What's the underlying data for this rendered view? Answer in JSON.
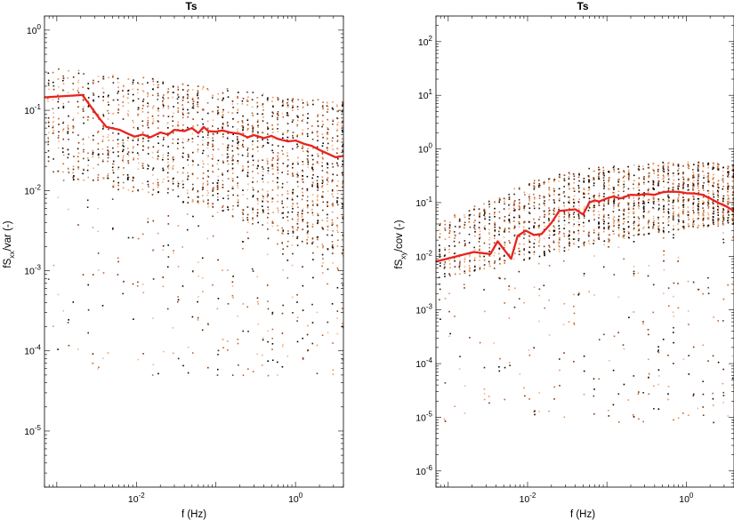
{
  "chart_data": [
    {
      "type": "scatter",
      "title": "Ts",
      "xlabel": "f (Hz)",
      "ylabel": "fSₓₓ/var (-)",
      "ylabel_main": "fS",
      "ylabel_sub": "xx",
      "ylabel_tail": "/var (-)",
      "x_scale": "log",
      "y_scale": "log",
      "xlim": [
        0.0007,
        4.0
      ],
      "ylim": [
        2e-06,
        1.5
      ],
      "x_ticks": [
        {
          "value": 0.01,
          "base": "10",
          "exp": "-2"
        },
        {
          "value": 1,
          "base": "10",
          "exp": "0"
        }
      ],
      "y_ticks": [
        {
          "value": 1,
          "base": "10",
          "exp": "0"
        },
        {
          "value": 0.1,
          "base": "10",
          "exp": "-1"
        },
        {
          "value": 0.01,
          "base": "10",
          "exp": "-2"
        },
        {
          "value": 0.001,
          "base": "10",
          "exp": "-3"
        },
        {
          "value": 0.0001,
          "base": "10",
          "exp": "-4"
        },
        {
          "value": 1e-05,
          "base": "10",
          "exp": "-5"
        }
      ],
      "scatter_cloud": {
        "colors": [
          "#000000",
          "#3a1a08",
          "#7a3410",
          "#c0622a",
          "#e9925a",
          "#f2b58a"
        ],
        "band_low": [
          0.018,
          0.013,
          0.011,
          0.0095,
          0.008,
          0.0065,
          0.005,
          0.0038,
          0.0028,
          0.002,
          0.0015
        ],
        "band_high": [
          0.35,
          0.33,
          0.3,
          0.27,
          0.24,
          0.21,
          0.19,
          0.17,
          0.15,
          0.14,
          0.13
        ],
        "outlier_low": 5e-05
      },
      "series": [
        {
          "color": "#e8231e",
          "x": [
            0.0007,
            0.0021,
            0.0034,
            0.0042,
            0.0062,
            0.0075,
            0.0095,
            0.012,
            0.015,
            0.02,
            0.025,
            0.03,
            0.04,
            0.05,
            0.06,
            0.07,
            0.08,
            0.1,
            0.12,
            0.15,
            0.2,
            0.25,
            0.3,
            0.4,
            0.5,
            0.6,
            0.8,
            1.0,
            1.3,
            1.6,
            2.0,
            2.5,
            3.2,
            4.0
          ],
          "y": [
            0.145,
            0.155,
            0.08,
            0.062,
            0.057,
            0.052,
            0.047,
            0.05,
            0.046,
            0.053,
            0.05,
            0.057,
            0.055,
            0.06,
            0.052,
            0.062,
            0.055,
            0.054,
            0.056,
            0.053,
            0.051,
            0.046,
            0.049,
            0.045,
            0.048,
            0.044,
            0.041,
            0.042,
            0.038,
            0.036,
            0.032,
            0.029,
            0.026,
            0.027
          ]
        }
      ]
    },
    {
      "type": "scatter",
      "title": "Ts",
      "xlabel": "f (Hz)",
      "ylabel": "fSₓᵧ/cov (-)",
      "ylabel_main": "fS",
      "ylabel_sub": "xy",
      "ylabel_tail": "/cov (-)",
      "x_scale": "log",
      "y_scale": "log",
      "xlim": [
        0.0007,
        4.0
      ],
      "ylim": [
        5e-07,
        300
      ],
      "x_ticks": [
        {
          "value": 0.01,
          "base": "10",
          "exp": "-2"
        },
        {
          "value": 1,
          "base": "10",
          "exp": "0"
        }
      ],
      "y_ticks": [
        {
          "value": 100,
          "base": "10",
          "exp": "2"
        },
        {
          "value": 10,
          "base": "10",
          "exp": "1"
        },
        {
          "value": 1,
          "base": "10",
          "exp": "0"
        },
        {
          "value": 0.1,
          "base": "10",
          "exp": "-1"
        },
        {
          "value": 0.01,
          "base": "10",
          "exp": "-2"
        },
        {
          "value": 0.001,
          "base": "10",
          "exp": "-3"
        },
        {
          "value": 0.0001,
          "base": "10",
          "exp": "-4"
        },
        {
          "value": 1e-05,
          "base": "10",
          "exp": "-5"
        },
        {
          "value": 1e-06,
          "base": "10",
          "exp": "-6"
        }
      ],
      "scatter_cloud": {
        "colors": [
          "#000000",
          "#3a1a08",
          "#7a3410",
          "#c0622a",
          "#e9925a",
          "#f2b58a"
        ],
        "band_low": [
          0.004,
          0.005,
          0.007,
          0.009,
          0.012,
          0.016,
          0.02,
          0.025,
          0.03,
          0.035,
          0.04
        ],
        "band_high": [
          0.05,
          0.08,
          0.15,
          0.25,
          0.35,
          0.45,
          0.5,
          0.55,
          0.6,
          0.6,
          0.55
        ],
        "outlier_low": 8e-06
      },
      "series": [
        {
          "color": "#e8231e",
          "x": [
            0.0007,
            0.0021,
            0.0034,
            0.0042,
            0.0062,
            0.0075,
            0.0095,
            0.012,
            0.015,
            0.02,
            0.025,
            0.03,
            0.04,
            0.05,
            0.06,
            0.07,
            0.08,
            0.1,
            0.12,
            0.15,
            0.2,
            0.25,
            0.3,
            0.4,
            0.5,
            0.6,
            0.8,
            1.0,
            1.3,
            1.6,
            2.0,
            2.5,
            3.2,
            4.0
          ],
          "y": [
            0.008,
            0.012,
            0.011,
            0.019,
            0.009,
            0.024,
            0.03,
            0.025,
            0.026,
            0.042,
            0.07,
            0.072,
            0.075,
            0.06,
            0.1,
            0.11,
            0.105,
            0.12,
            0.13,
            0.12,
            0.14,
            0.138,
            0.145,
            0.14,
            0.155,
            0.16,
            0.158,
            0.15,
            0.148,
            0.14,
            0.12,
            0.1,
            0.085,
            0.07
          ]
        }
      ]
    }
  ]
}
